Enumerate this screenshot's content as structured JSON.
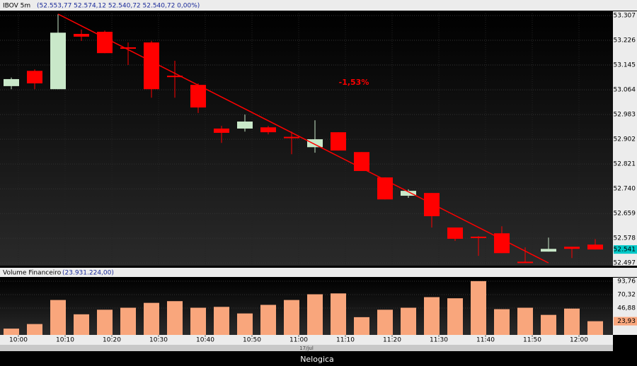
{
  "chart_data": [
    {
      "type": "candlestick",
      "symbol": "IBOV 5m",
      "quote": "(52.553,77  52.574,12  52.540,72  52.540,72  0,00%)",
      "open": [
        53076,
        53126,
        53066,
        53247,
        53254,
        53203,
        53219,
        53110,
        53080,
        52937,
        52937,
        52941,
        52910,
        52876,
        52925,
        52860,
        52777,
        52717,
        52726,
        52613,
        52583,
        52594,
        52501,
        52534,
        52550,
        52557
      ],
      "high": [
        53104,
        53131,
        53312,
        53261,
        53258,
        53219,
        53224,
        53159,
        53085,
        52946,
        52983,
        52946,
        52927,
        52964,
        52925,
        52860,
        52777,
        52738,
        52726,
        52613,
        52585,
        52617,
        52548,
        52580,
        52550,
        52575
      ],
      "low": [
        53066,
        53066,
        53066,
        53224,
        53184,
        53145,
        53038,
        53038,
        52988,
        52890,
        52927,
        52918,
        52853,
        52858,
        52865,
        52798,
        52705,
        52710,
        52613,
        52569,
        52520,
        52529,
        52497,
        52534,
        52513,
        52541
      ],
      "close": [
        53099,
        53085,
        53251,
        53238,
        53184,
        53200,
        53066,
        53108,
        53006,
        52923,
        52960,
        52925,
        52908,
        52902,
        52865,
        52798,
        52705,
        52733,
        52650,
        52576,
        52582,
        52529,
        52499,
        52543,
        52543,
        52541
      ],
      "up_color": "#c9e8c9",
      "down_color": "#ff0000",
      "ylim": [
        52488,
        53321
      ],
      "yticks": [
        {
          "value": 52497,
          "label": "52.497"
        },
        {
          "value": 52578,
          "label": "52.578"
        },
        {
          "value": 52659,
          "label": "52.659"
        },
        {
          "value": 52740,
          "label": "52.740"
        },
        {
          "value": 52821,
          "label": "52.821"
        },
        {
          "value": 52902,
          "label": "52.902"
        },
        {
          "value": 52983,
          "label": "52.983"
        },
        {
          "value": 53064,
          "label": "53.064"
        },
        {
          "value": 53145,
          "label": "53.145"
        },
        {
          "value": 53226,
          "label": "53.226"
        },
        {
          "value": 53307,
          "label": "53.307"
        }
      ],
      "last_price": {
        "value": 52541,
        "label": "52.541"
      },
      "trendline": {
        "start_index": 2,
        "start_value": 53312,
        "end_index": 23,
        "end_value": 52497,
        "label": "-1,53%",
        "color": "#ff0000"
      },
      "grid": true
    },
    {
      "type": "bar",
      "title": "Volume Financeiro",
      "total": "(23.931.224,00)",
      "categories": [
        "10:00",
        null,
        "10:10",
        null,
        "10:20",
        null,
        "10:30",
        null,
        "10:40",
        null,
        "10:50",
        null,
        "11:00",
        null,
        "11:10",
        null,
        "11:20",
        null,
        "11:30",
        null,
        "11:40",
        null,
        "11:50",
        null,
        "12:00",
        null
      ],
      "values": [
        11,
        19,
        61,
        36,
        44,
        47.5,
        56,
        59,
        47.5,
        49,
        37.5,
        52.5,
        61,
        71,
        72.5,
        31,
        44,
        47.5,
        66,
        64,
        94,
        45,
        47.5,
        35,
        46,
        23.93
      ],
      "color": "#f9a67c",
      "ylim": [
        0,
        100
      ],
      "yticks": [
        {
          "value": 46.88,
          "label": "46,88"
        },
        {
          "value": 70.32,
          "label": "70,32"
        },
        {
          "value": 93.76,
          "label": "93,76"
        }
      ],
      "last_value": {
        "value": 23.93,
        "label": "23,93"
      },
      "date": "17/jul",
      "footer": "Nelogica",
      "grid": true
    }
  ]
}
